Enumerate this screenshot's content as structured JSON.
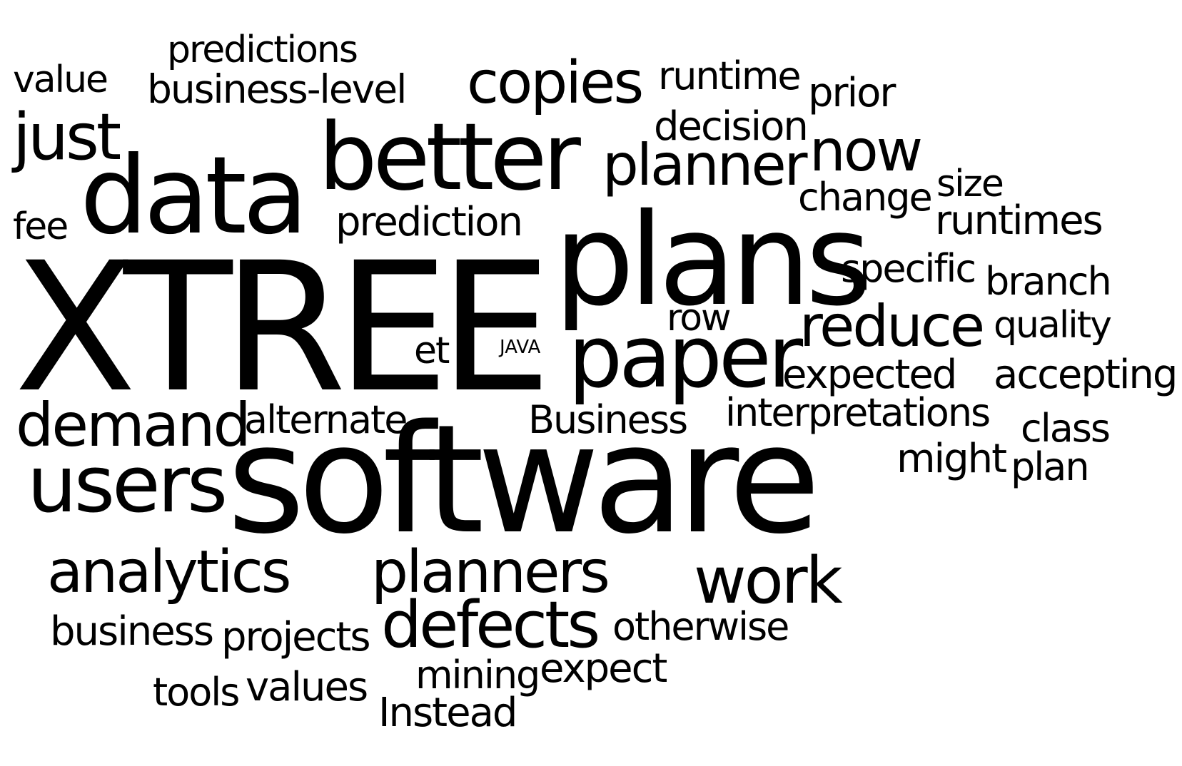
{
  "colors": {
    "background": "#ffffff",
    "text": "#000000"
  },
  "words": [
    "predictions",
    "value",
    "business-level",
    "copies",
    "runtime",
    "prior",
    "just",
    "better",
    "decision",
    "now",
    "data",
    "planner",
    "size",
    "change",
    "fee",
    "prediction",
    "runtimes",
    "plans",
    "specific",
    "branch",
    "XTREE",
    "row",
    "reduce",
    "quality",
    "et",
    "JAVA",
    "paper",
    "expected",
    "accepting",
    "demand",
    "alternate",
    "Business",
    "interpretations",
    "class",
    "software",
    "might",
    "users",
    "plan",
    "analytics",
    "planners",
    "work",
    "business",
    "projects",
    "defects",
    "otherwise",
    "mining",
    "expect",
    "tools",
    "values",
    "Instead"
  ]
}
